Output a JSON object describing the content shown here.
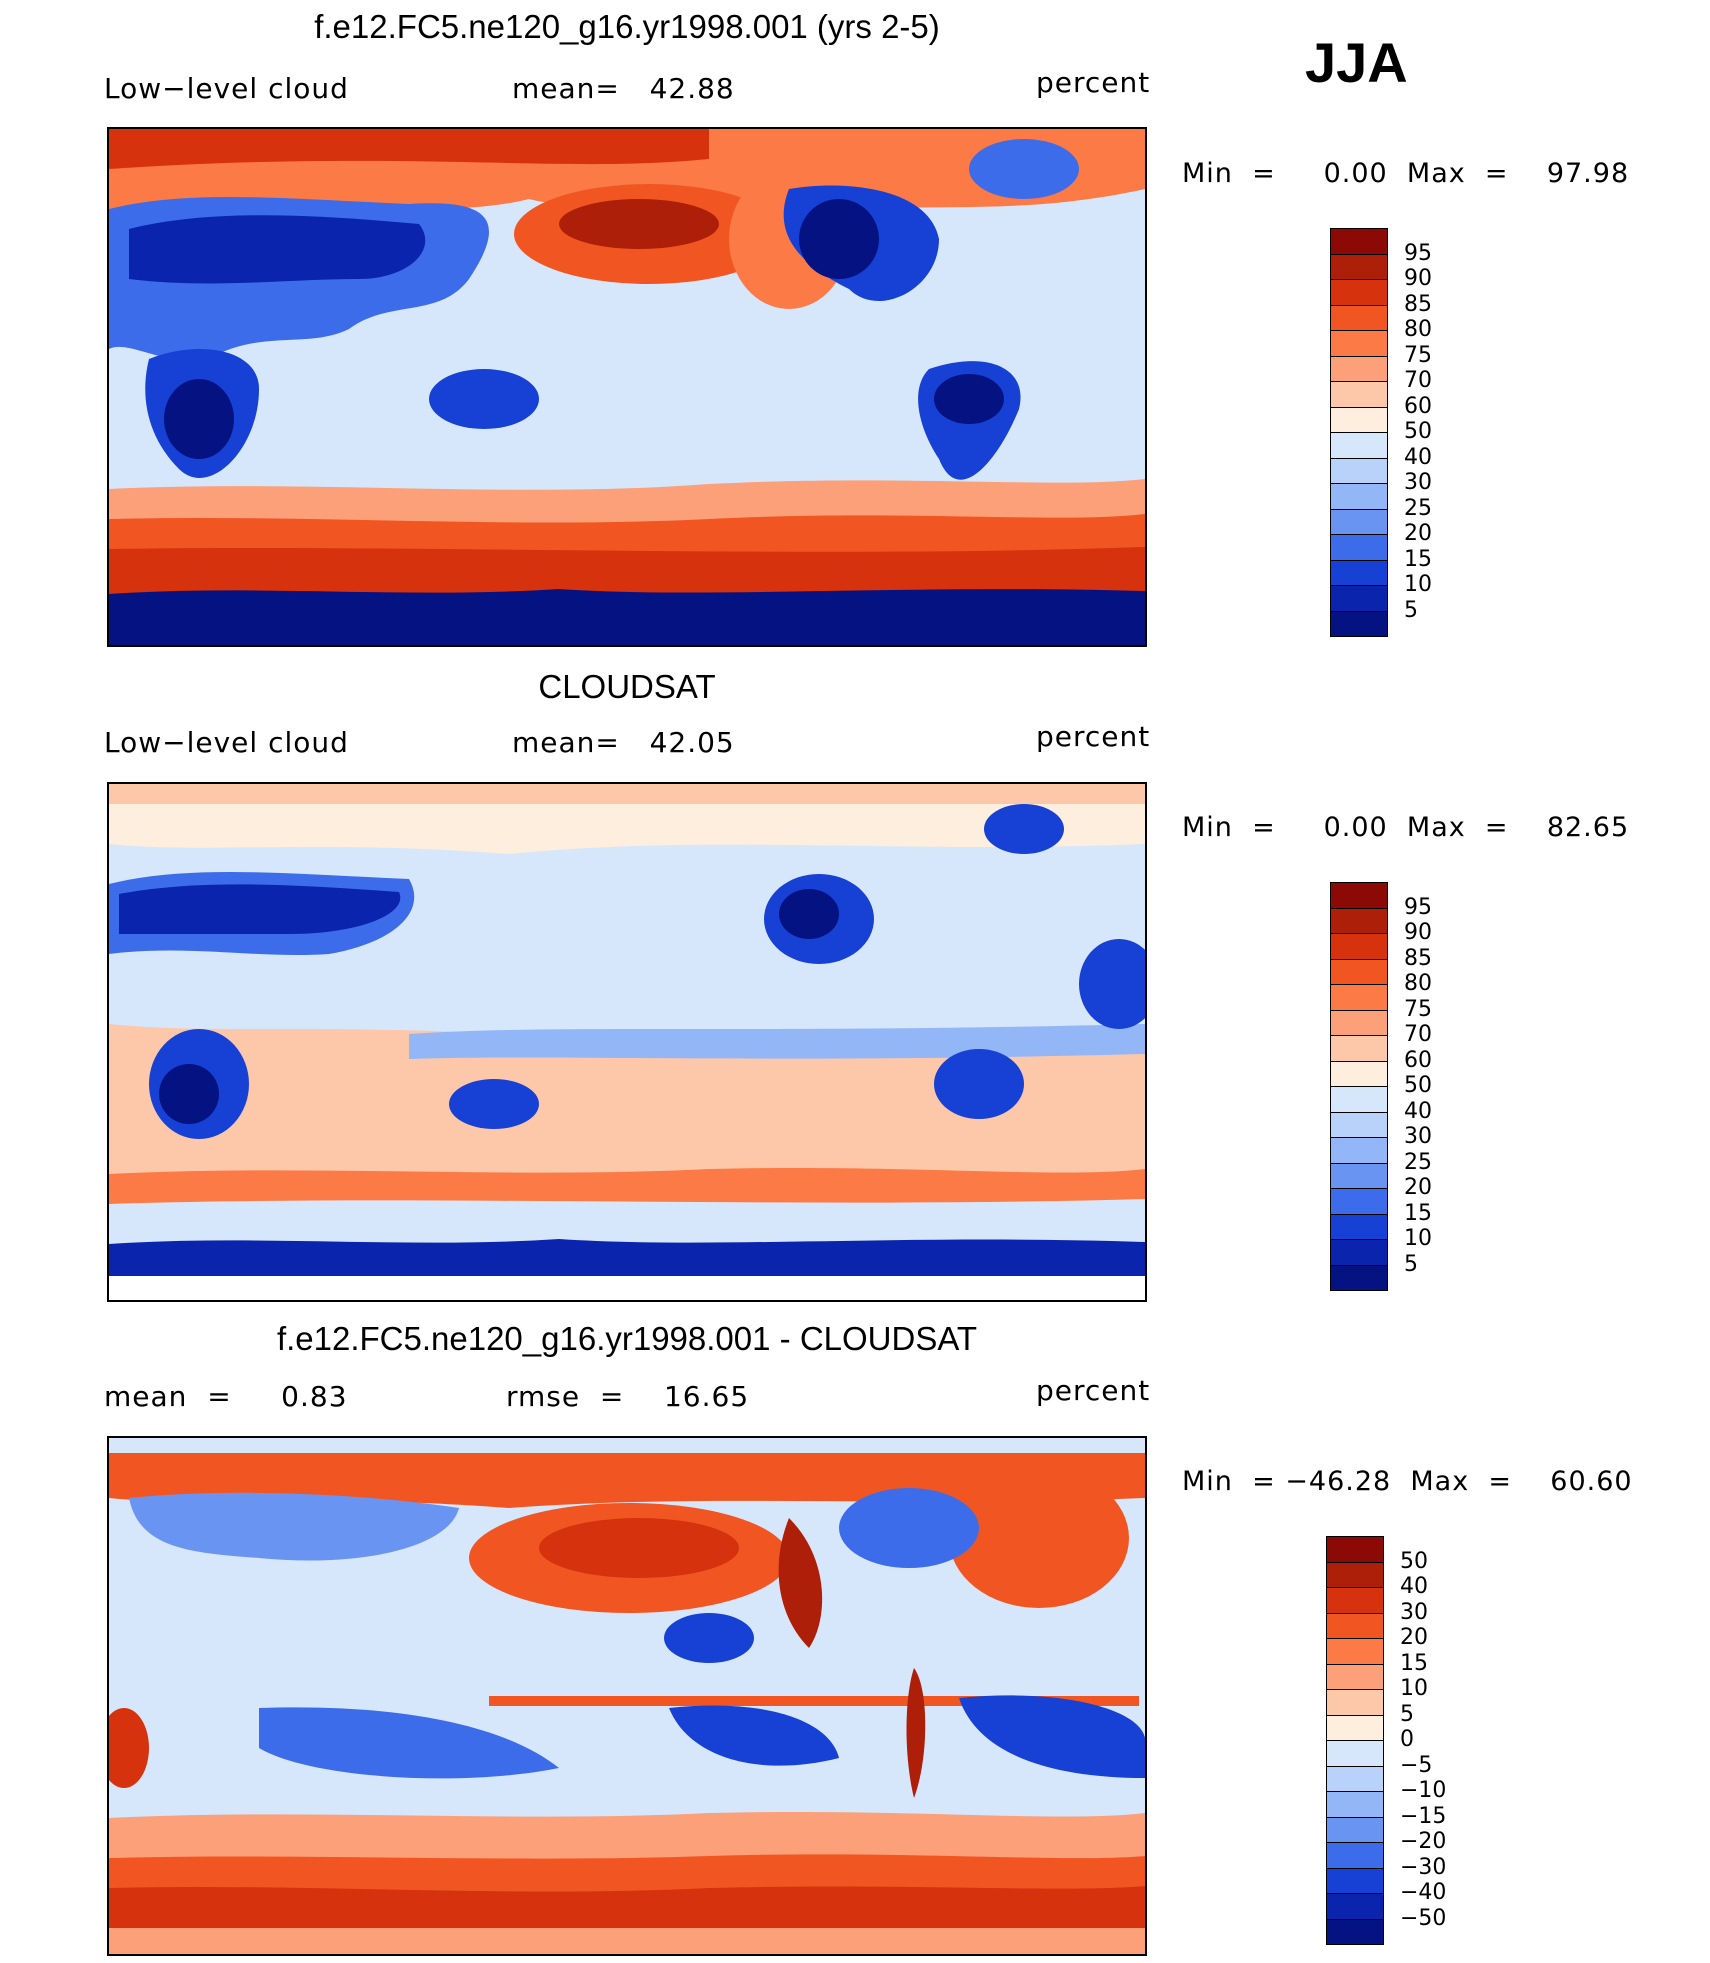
{
  "season": "JJA",
  "panels": [
    {
      "title": "f.e12.FC5.ne120_g16.yr1998.001 (yrs 2-5)",
      "left_label": "Low−level cloud",
      "center_label": "mean=   42.88",
      "units": "percent",
      "minmax": "Min  =     0.00  Max  =    97.98",
      "colorbar": {
        "labels": [
          "95",
          "90",
          "85",
          "80",
          "75",
          "70",
          "60",
          "50",
          "40",
          "30",
          "25",
          "20",
          "15",
          "10",
          "5"
        ],
        "colors": [
          "#8b0a06",
          "#ad1f08",
          "#d6320d",
          "#f15622",
          "#fb7a45",
          "#fca07a",
          "#fdc8aa",
          "#feeedd",
          "#d6e7fb",
          "#b8d2fa",
          "#93b6f7",
          "#6a94f2",
          "#3d6cea",
          "#1740d4",
          "#0a24ad",
          "#051282"
        ]
      }
    },
    {
      "title": "CLOUDSAT",
      "left_label": "Low−level cloud",
      "center_label": "mean=   42.05",
      "units": "percent",
      "minmax": "Min  =     0.00  Max  =    82.65",
      "colorbar": {
        "labels": [
          "95",
          "90",
          "85",
          "80",
          "75",
          "70",
          "60",
          "50",
          "40",
          "30",
          "25",
          "20",
          "15",
          "10",
          "5"
        ],
        "colors": [
          "#8b0a06",
          "#ad1f08",
          "#d6320d",
          "#f15622",
          "#fb7a45",
          "#fca07a",
          "#fdc8aa",
          "#feeedd",
          "#d6e7fb",
          "#b8d2fa",
          "#93b6f7",
          "#6a94f2",
          "#3d6cea",
          "#1740d4",
          "#0a24ad",
          "#051282"
        ]
      }
    },
    {
      "title": "f.e12.FC5.ne120_g16.yr1998.001 - CLOUDSAT",
      "left_label": "mean  =     0.83",
      "center_label": "rmse  =    16.65",
      "units": "percent",
      "minmax": "Min  = −46.28  Max  =    60.60",
      "colorbar": {
        "labels": [
          "50",
          "40",
          "30",
          "20",
          "15",
          "10",
          "5",
          "0",
          "−5",
          "−10",
          "−15",
          "−20",
          "−30",
          "−40",
          "−50"
        ],
        "colors": [
          "#8b0a06",
          "#ad1f08",
          "#d6320d",
          "#f15622",
          "#fb7a45",
          "#fca07a",
          "#fdc8aa",
          "#feeedd",
          "#d6e7fb",
          "#b8d2fa",
          "#93b6f7",
          "#6a94f2",
          "#3d6cea",
          "#1740d4",
          "#0a24ad",
          "#051282"
        ]
      }
    }
  ]
}
